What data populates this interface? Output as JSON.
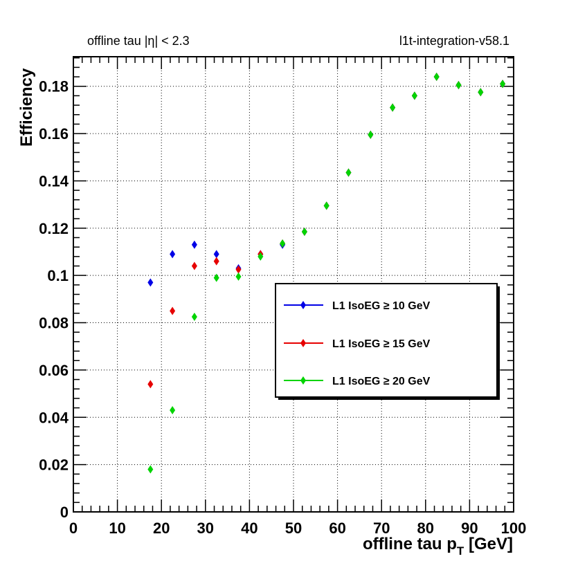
{
  "chart_data": {
    "type": "scatter",
    "header_left_prefix": "offline tau |",
    "header_left_eta": "η",
    "header_left_suffix": "| < 2.3",
    "header_right": "l1t-integration-v58.1",
    "xlabel_main": "offline tau p",
    "xlabel_sub": "T",
    "xlabel_unit": " [GeV]",
    "ylabel": "Efficiency",
    "xlim": [
      0,
      100
    ],
    "ylim": [
      0,
      0.1925
    ],
    "x_ticks": [
      0,
      10,
      20,
      30,
      40,
      50,
      60,
      70,
      80,
      90,
      100
    ],
    "x_tick_labels": [
      "0",
      "10",
      "20",
      "30",
      "40",
      "50",
      "60",
      "70",
      "80",
      "90",
      "100"
    ],
    "y_ticks": [
      0,
      0.02,
      0.04,
      0.06,
      0.08,
      0.1,
      0.12,
      0.14,
      0.16,
      0.18
    ],
    "y_tick_labels": [
      "0",
      "0.02",
      "0.04",
      "0.06",
      "0.08",
      "0.1",
      "0.12",
      "0.14",
      "0.16",
      "0.18"
    ],
    "grid": true,
    "legend_position": "center-right",
    "series": [
      {
        "name": "L1 IsoEG ≥ 10 GeV",
        "color": "#0000e6",
        "x": [
          17.5,
          22.5,
          27.5,
          32.5,
          37.5,
          42.5,
          47.5,
          52.5,
          57.5,
          62.5,
          67.5,
          72.5,
          77.5,
          82.5,
          87.5,
          92.5,
          97.5
        ],
        "y": [
          0.097,
          0.109,
          0.113,
          0.109,
          0.103,
          0.109,
          0.113,
          0.1185,
          0.1295,
          0.1435,
          0.1595,
          0.171,
          0.176,
          0.184,
          0.1805,
          0.1775,
          0.181
        ]
      },
      {
        "name": "L1 IsoEG ≥ 15 GeV",
        "color": "#e60000",
        "x": [
          17.5,
          22.5,
          27.5,
          32.5,
          37.5,
          42.5,
          47.5,
          52.5,
          57.5,
          62.5,
          67.5,
          72.5,
          77.5,
          82.5,
          87.5,
          92.5,
          97.5
        ],
        "y": [
          0.054,
          0.085,
          0.104,
          0.106,
          0.1025,
          0.109,
          0.1135,
          0.1185,
          0.1295,
          0.1435,
          0.1595,
          0.171,
          0.176,
          0.184,
          0.1805,
          0.1775,
          0.181
        ]
      },
      {
        "name": "L1 IsoEG ≥ 20 GeV",
        "color": "#00d400",
        "x": [
          17.5,
          22.5,
          27.5,
          32.5,
          37.5,
          42.5,
          47.5,
          52.5,
          57.5,
          62.5,
          67.5,
          72.5,
          77.5,
          82.5,
          87.5,
          92.5,
          97.5
        ],
        "y": [
          0.018,
          0.043,
          0.0825,
          0.099,
          0.0995,
          0.108,
          0.1135,
          0.1185,
          0.1295,
          0.1435,
          0.1595,
          0.171,
          0.176,
          0.184,
          0.1805,
          0.1775,
          0.181
        ]
      }
    ]
  }
}
